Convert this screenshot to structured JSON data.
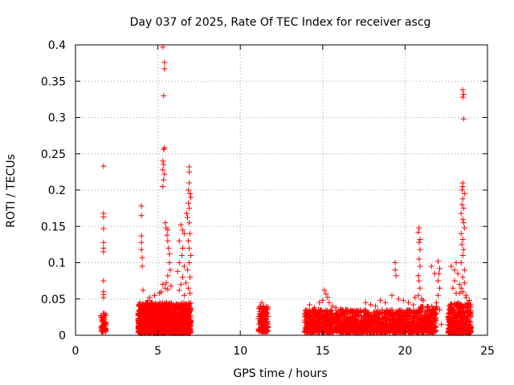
{
  "chart_data": {
    "type": "scatter",
    "title": "Day 037 of 2025, Rate Of TEC Index for receiver ascg",
    "xlabel": "GPS time / hours",
    "ylabel": "ROTI / TECUs",
    "xlim": [
      0,
      25
    ],
    "ylim": [
      0,
      0.4
    ],
    "xticks": [
      0,
      5,
      10,
      15,
      20,
      25
    ],
    "xtick_labels": [
      "0",
      "5",
      "10",
      "15",
      "20",
      "25"
    ],
    "yticks": [
      0,
      0.05,
      0.1,
      0.15,
      0.2,
      0.25,
      0.3,
      0.35,
      0.4
    ],
    "ytick_labels": [
      "0",
      "0.05",
      "0.1",
      "0.15",
      "0.2",
      "0.25",
      "0.3",
      "0.35",
      "0.4"
    ],
    "grid": true,
    "legend": "none",
    "marker": "+",
    "marker_color": "#ff0000",
    "series": [
      {
        "points": [
          [
            1.7,
            0.233
          ],
          [
            1.7,
            0.168
          ],
          [
            1.7,
            0.163
          ],
          [
            1.7,
            0.147
          ],
          [
            1.7,
            0.128
          ],
          [
            1.7,
            0.12
          ],
          [
            1.7,
            0.115
          ],
          [
            1.7,
            0.075
          ],
          [
            1.7,
            0.06
          ],
          [
            1.7,
            0.056
          ],
          [
            1.7,
            0.052
          ],
          [
            1.7,
            0.025
          ],
          [
            1.7,
            0.02
          ],
          [
            1.7,
            0.015
          ],
          [
            1.7,
            0.01
          ],
          [
            1.75,
            0.03
          ],
          [
            1.65,
            0.018
          ],
          [
            1.75,
            0.008
          ],
          [
            4.0,
            0.178
          ],
          [
            4.0,
            0.165
          ],
          [
            4.0,
            0.137
          ],
          [
            4.0,
            0.128
          ],
          [
            4.0,
            0.118
          ],
          [
            4.05,
            0.107
          ],
          [
            4.05,
            0.095
          ],
          [
            4.1,
            0.062
          ],
          [
            3.9,
            0.045
          ],
          [
            4.2,
            0.04
          ],
          [
            4.5,
            0.052
          ],
          [
            4.8,
            0.055
          ],
          [
            4.4,
            0.048
          ],
          [
            5.3,
            0.397
          ],
          [
            5.4,
            0.376
          ],
          [
            5.4,
            0.367
          ],
          [
            5.35,
            0.33
          ],
          [
            5.4,
            0.258
          ],
          [
            5.35,
            0.256
          ],
          [
            5.3,
            0.24
          ],
          [
            5.35,
            0.235
          ],
          [
            5.3,
            0.228
          ],
          [
            5.4,
            0.222
          ],
          [
            5.35,
            0.214
          ],
          [
            5.3,
            0.205
          ],
          [
            5.45,
            0.155
          ],
          [
            5.5,
            0.148
          ],
          [
            5.6,
            0.145
          ],
          [
            5.55,
            0.138
          ],
          [
            5.6,
            0.13
          ],
          [
            5.65,
            0.12
          ],
          [
            5.7,
            0.112
          ],
          [
            5.7,
            0.1
          ],
          [
            5.75,
            0.09
          ],
          [
            5.6,
            0.082
          ],
          [
            5.5,
            0.072
          ],
          [
            5.45,
            0.065
          ],
          [
            5.2,
            0.06
          ],
          [
            5.1,
            0.058
          ],
          [
            5.3,
            0.07
          ],
          [
            5.6,
            0.063
          ],
          [
            5.8,
            0.068
          ],
          [
            6.4,
            0.152
          ],
          [
            6.5,
            0.145
          ],
          [
            6.6,
            0.14
          ],
          [
            6.3,
            0.13
          ],
          [
            6.5,
            0.12
          ],
          [
            6.45,
            0.11
          ],
          [
            6.3,
            0.1
          ],
          [
            6.6,
            0.095
          ],
          [
            6.2,
            0.088
          ],
          [
            6.5,
            0.08
          ],
          [
            6.4,
            0.07
          ],
          [
            6.3,
            0.062
          ],
          [
            6.9,
            0.232
          ],
          [
            6.9,
            0.225
          ],
          [
            6.9,
            0.21
          ],
          [
            6.85,
            0.2
          ],
          [
            6.95,
            0.195
          ],
          [
            7.0,
            0.19
          ],
          [
            6.85,
            0.182
          ],
          [
            6.9,
            0.175
          ],
          [
            6.75,
            0.168
          ],
          [
            6.8,
            0.162
          ],
          [
            6.9,
            0.155
          ],
          [
            6.95,
            0.14
          ],
          [
            6.85,
            0.13
          ],
          [
            6.9,
            0.12
          ],
          [
            7.0,
            0.11
          ],
          [
            6.9,
            0.1
          ],
          [
            6.8,
            0.09
          ],
          [
            6.95,
            0.08
          ],
          [
            6.7,
            0.072
          ],
          [
            6.85,
            0.065
          ],
          [
            6.95,
            0.058
          ],
          [
            6.6,
            0.055
          ],
          [
            11.3,
            0.045
          ],
          [
            11.4,
            0.04
          ],
          [
            11.5,
            0.035
          ],
          [
            11.2,
            0.03
          ],
          [
            11.4,
            0.025
          ],
          [
            11.6,
            0.022
          ],
          [
            11.3,
            0.018
          ],
          [
            11.5,
            0.015
          ],
          [
            11.4,
            0.012
          ],
          [
            11.6,
            0.01
          ],
          [
            11.3,
            0.008
          ],
          [
            14.2,
            0.042
          ],
          [
            14.5,
            0.038
          ],
          [
            14.8,
            0.045
          ],
          [
            15.1,
            0.062
          ],
          [
            15.2,
            0.057
          ],
          [
            15.3,
            0.052
          ],
          [
            15.0,
            0.048
          ],
          [
            15.4,
            0.045
          ],
          [
            15.6,
            0.04
          ],
          [
            15.8,
            0.038
          ],
          [
            16.1,
            0.036
          ],
          [
            16.4,
            0.035
          ],
          [
            16.8,
            0.032
          ],
          [
            17.1,
            0.03
          ],
          [
            17.6,
            0.045
          ],
          [
            17.9,
            0.042
          ],
          [
            18.2,
            0.04
          ],
          [
            18.5,
            0.048
          ],
          [
            18.8,
            0.045
          ],
          [
            19.4,
            0.1
          ],
          [
            19.4,
            0.09
          ],
          [
            19.45,
            0.082
          ],
          [
            19.2,
            0.055
          ],
          [
            19.6,
            0.05
          ],
          [
            19.9,
            0.048
          ],
          [
            20.2,
            0.045
          ],
          [
            20.5,
            0.042
          ],
          [
            20.85,
            0.148
          ],
          [
            20.8,
            0.142
          ],
          [
            20.9,
            0.132
          ],
          [
            20.85,
            0.128
          ],
          [
            20.9,
            0.118
          ],
          [
            20.85,
            0.105
          ],
          [
            20.9,
            0.095
          ],
          [
            20.8,
            0.082
          ],
          [
            20.85,
            0.075
          ],
          [
            20.9,
            0.065
          ],
          [
            20.8,
            0.055
          ],
          [
            21.0,
            0.05
          ],
          [
            21.1,
            0.048
          ],
          [
            20.6,
            0.052
          ],
          [
            21.6,
            0.095
          ],
          [
            22.0,
            0.102
          ],
          [
            22.1,
            0.092
          ],
          [
            22.05,
            0.085
          ],
          [
            21.8,
            0.085
          ],
          [
            22.0,
            0.075
          ],
          [
            22.1,
            0.065
          ],
          [
            22.0,
            0.055
          ],
          [
            21.9,
            0.045
          ],
          [
            22.1,
            0.035
          ],
          [
            21.5,
            0.03
          ],
          [
            21.7,
            0.02
          ],
          [
            22.2,
            0.015
          ],
          [
            21.4,
            0.012
          ],
          [
            21.6,
            0.008
          ],
          [
            22.8,
            0.095
          ],
          [
            23.0,
            0.09
          ],
          [
            23.1,
            0.1
          ],
          [
            23.2,
            0.085
          ],
          [
            23.0,
            0.075
          ],
          [
            22.9,
            0.065
          ],
          [
            23.1,
            0.058
          ],
          [
            23.3,
            0.07
          ],
          [
            23.5,
            0.06
          ],
          [
            23.7,
            0.052
          ],
          [
            23.9,
            0.048
          ],
          [
            23.5,
            0.338
          ],
          [
            23.55,
            0.332
          ],
          [
            23.5,
            0.328
          ],
          [
            23.55,
            0.298
          ],
          [
            23.5,
            0.21
          ],
          [
            23.5,
            0.205
          ],
          [
            23.45,
            0.2
          ],
          [
            23.6,
            0.195
          ],
          [
            23.5,
            0.188
          ],
          [
            23.45,
            0.18
          ],
          [
            23.55,
            0.175
          ],
          [
            23.4,
            0.168
          ],
          [
            23.5,
            0.16
          ],
          [
            23.55,
            0.155
          ],
          [
            23.6,
            0.148
          ],
          [
            23.4,
            0.14
          ],
          [
            23.5,
            0.132
          ],
          [
            23.45,
            0.125
          ],
          [
            23.55,
            0.118
          ],
          [
            23.5,
            0.11
          ],
          [
            23.4,
            0.1
          ],
          [
            23.6,
            0.09
          ],
          [
            23.5,
            0.08
          ],
          [
            23.6,
            0.072
          ],
          [
            23.4,
            0.065
          ],
          [
            23.3,
            0.058
          ],
          [
            23.7,
            0.055
          ]
        ],
        "dense_bands": [
          {
            "x": [
              1.55,
              1.85
            ],
            "y": [
              0.005,
              0.03
            ],
            "count": 60
          },
          {
            "x": [
              3.8,
              7.0
            ],
            "y": [
              0.003,
              0.045
            ],
            "count": 1500
          },
          {
            "x": [
              11.1,
              11.7
            ],
            "y": [
              0.005,
              0.04
            ],
            "count": 150
          },
          {
            "x": [
              13.9,
              20.8
            ],
            "y": [
              0.004,
              0.035
            ],
            "count": 1500
          },
          {
            "x": [
              20.8,
              21.9
            ],
            "y": [
              0.004,
              0.04
            ],
            "count": 250
          },
          {
            "x": [
              22.6,
              24.0
            ],
            "y": [
              0.003,
              0.045
            ],
            "count": 400
          }
        ]
      }
    ]
  }
}
